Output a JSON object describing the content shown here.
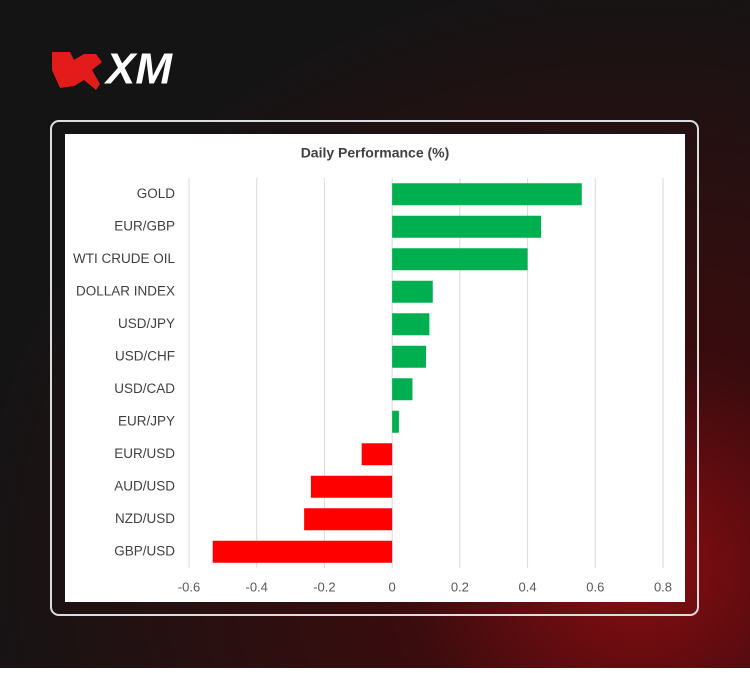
{
  "brand": "XM",
  "chart_data": {
    "type": "barh",
    "title": "Daily Performance (%)",
    "categories": [
      "GOLD",
      "EUR/GBP",
      "WTI CRUDE OIL",
      "DOLLAR INDEX",
      "USD/JPY",
      "USD/CHF",
      "USD/CAD",
      "EUR/JPY",
      "EUR/USD",
      "AUD/USD",
      "NZD/USD",
      "GBP/USD"
    ],
    "values": [
      0.56,
      0.44,
      0.4,
      0.12,
      0.11,
      0.1,
      0.06,
      0.02,
      -0.09,
      -0.24,
      -0.26,
      -0.53
    ],
    "positive_color": "#00b050",
    "negative_color": "#ff0000",
    "xlim": [
      -0.6,
      0.8
    ],
    "xticks": [
      -0.6,
      -0.4,
      -0.2,
      0,
      0.2,
      0.4,
      0.6,
      0.8
    ],
    "grid": true
  }
}
